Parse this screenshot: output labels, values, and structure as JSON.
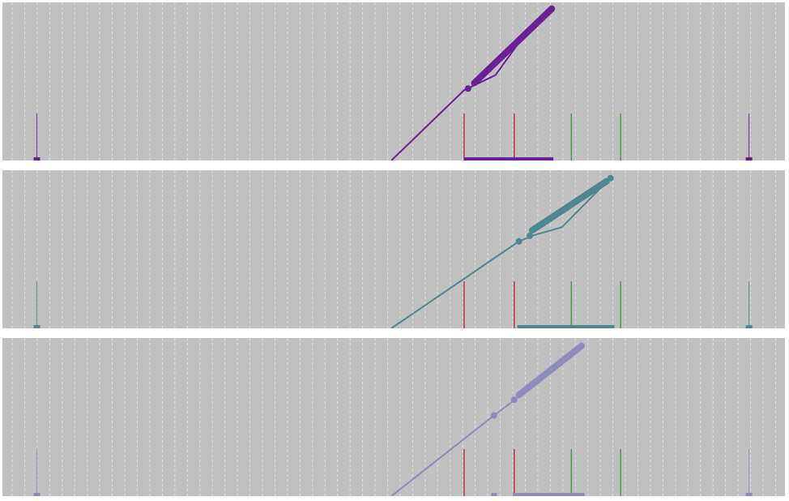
{
  "figure": {
    "background_color": "#ffffff",
    "panel_background": "#c0c0c0",
    "gridline_color": "#e6e6e6",
    "reference_line_colors": {
      "red": "#b03a3a",
      "green": "#4f9a4f"
    }
  },
  "chart_data": [
    {
      "type": "line",
      "panel": 1,
      "series_color": "#6b2194",
      "title": "",
      "xlabel": "",
      "ylabel": "",
      "xlim": [
        0,
        100
      ],
      "ylim": [
        0,
        100
      ],
      "grid": true,
      "legend": "none",
      "line": {
        "x": [
          49.7,
          59.0,
          63.0,
          66.5,
          70.2
        ],
        "y": [
          0,
          44.5,
          54,
          78,
          96
        ]
      },
      "thick_segment": {
        "x": [
          60.5,
          70.2
        ],
        "y": [
          50,
          96
        ]
      },
      "points": [
        {
          "x": 59.5,
          "y": 45.5
        },
        {
          "x": 60.3,
          "y": 49
        },
        {
          "x": 70.2,
          "y": 96
        }
      ],
      "reference_lines": {
        "red": [
          59.0,
          65.4
        ],
        "green": [
          72.7,
          79.0
        ]
      },
      "range_bar": {
        "from": 59.0,
        "to": 70.4
      },
      "markers": [
        4.4,
        95.4
      ]
    },
    {
      "type": "line",
      "panel": 2,
      "series_color": "#4e878e",
      "title": "",
      "xlabel": "",
      "ylabel": "",
      "xlim": [
        0,
        100
      ],
      "ylim": [
        0,
        100
      ],
      "grid": true,
      "legend": "none",
      "line": {
        "x": [
          49.7,
          66.0,
          68.0,
          71.5,
          77.7
        ],
        "y": [
          0,
          55,
          59,
          64,
          95
        ]
      },
      "thick_segment": {
        "x": [
          67.7,
          77.2
        ],
        "y": [
          62,
          93
        ]
      },
      "points": [
        {
          "x": 66.0,
          "y": 55
        },
        {
          "x": 67.4,
          "y": 58.5
        },
        {
          "x": 77.7,
          "y": 95
        }
      ],
      "reference_lines": {
        "red": [
          59.0,
          65.4
        ],
        "green": [
          72.7,
          79.0
        ]
      },
      "range_bar": {
        "from": 65.8,
        "to": 78.2
      },
      "markers": [
        4.4,
        95.4
      ]
    },
    {
      "type": "line",
      "panel": 3,
      "series_color": "#8e8cbd",
      "title": "",
      "xlabel": "",
      "ylabel": "",
      "xlim": [
        0,
        100
      ],
      "ylim": [
        0,
        100
      ],
      "grid": true,
      "legend": "none",
      "line": {
        "x": [
          49.7,
          62.8,
          65.5,
          69.0,
          74.0
        ],
        "y": [
          0,
          51,
          61,
          75,
          95
        ]
      },
      "thick_segment": {
        "x": [
          66.0,
          74.0
        ],
        "y": [
          64,
          95
        ]
      },
      "points": [
        {
          "x": 62.8,
          "y": 51
        },
        {
          "x": 65.4,
          "y": 61
        },
        {
          "x": 74.0,
          "y": 95
        }
      ],
      "reference_lines": {
        "red": [
          59.0,
          65.4
        ],
        "green": [
          72.7,
          79.0
        ]
      },
      "range_bar": {
        "from": 65.2,
        "to": 74.4
      },
      "extra_tick": 62.8,
      "markers": [
        4.4,
        95.4
      ]
    }
  ]
}
